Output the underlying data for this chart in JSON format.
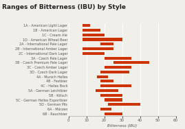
{
  "title": "Ranges of Bitterness (IBU) by Style",
  "xlabel": "Bitterness (IBU)",
  "categories": [
    "1A - American Light Lager",
    "1B - American Lager",
    "1C - Cream Ale",
    "1D - American Wheat Beer",
    "2A - International Pale Lager",
    "2B - International Amber Lager",
    "2C - International Dark Lager",
    "3A - Czech Pale Lager",
    "3B - Czech Premium Pale Lager",
    "3C - Czech Amber Lager",
    "3D - Czech Dark Lager",
    "4A - Munich Helles",
    "4B - Festbier",
    "4C - Helles Bock",
    "5A - German Leichtbier",
    "5B - Kölsch",
    "5C - German Helles Exportbier",
    "5D - German Pils",
    "6A - Märzen",
    "6B - Rauchbier"
  ],
  "ranges": [
    [
      8,
      12
    ],
    [
      8,
      18
    ],
    [
      8,
      20
    ],
    [
      8,
      30
    ],
    [
      18,
      25
    ],
    [
      8,
      25
    ],
    [
      8,
      20
    ],
    [
      20,
      35
    ],
    [
      25,
      45
    ],
    [
      20,
      35
    ],
    [
      18,
      34
    ],
    [
      16,
      22
    ],
    [
      18,
      25
    ],
    [
      18,
      35
    ],
    [
      15,
      28
    ],
    [
      18,
      30
    ],
    [
      20,
      30
    ],
    [
      22,
      40
    ],
    [
      18,
      24
    ],
    [
      20,
      30
    ]
  ],
  "bar_color": "#cc3300",
  "bg_color": "#f0efea",
  "xlim": [
    0,
    60
  ],
  "xticks": [
    0,
    10,
    20,
    30,
    40,
    50,
    60
  ],
  "title_fontsize": 6.5,
  "label_fontsize": 3.5,
  "axis_fontsize": 4.0
}
